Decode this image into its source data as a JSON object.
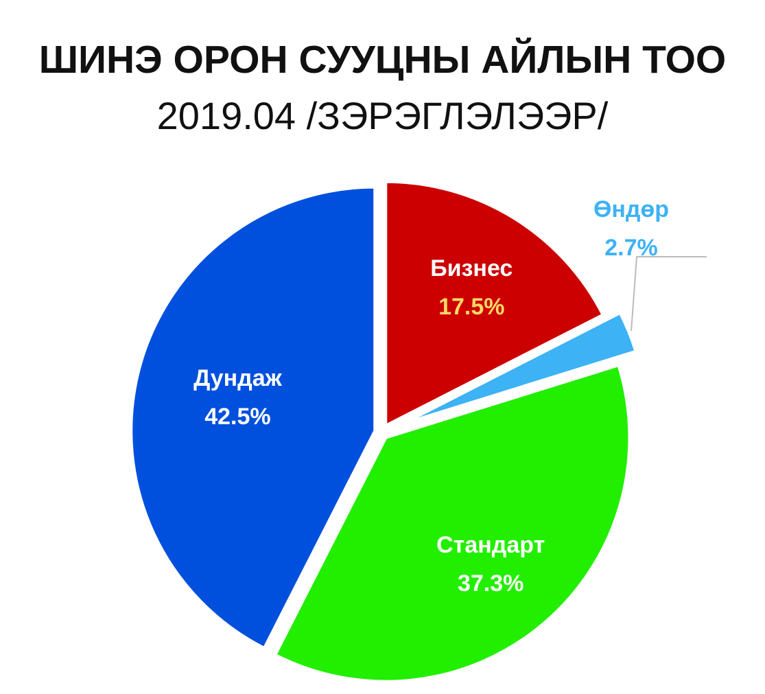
{
  "chart_data": {
    "type": "pie",
    "title": "ШИНЭ ОРОН СУУЦНЫ АЙЛЫН ТОО",
    "subtitle": "2019.04 /ЗЭРЭГЛЭЛЭЭР/",
    "slices": [
      {
        "label": "Бизнес",
        "value": 17.5,
        "value_label": "17.5%",
        "color": "#cc0000",
        "label_color": "#ffffff",
        "value_color": "#ffd966"
      },
      {
        "label": "Өндөр",
        "value": 2.7,
        "value_label": "2.7%",
        "color": "#3db2f5",
        "label_color": "#3db2f5",
        "value_color": "#3db2f5"
      },
      {
        "label": "Стандарт",
        "value": 37.3,
        "value_label": "37.3%",
        "color": "#22ee00",
        "label_color": "#ffffff",
        "value_color": "#ffffff"
      },
      {
        "label": "Дундаж",
        "value": 42.5,
        "value_label": "42.5%",
        "color": "#0050dd",
        "label_color": "#ffffff",
        "value_color": "#ffffff"
      }
    ],
    "start_angle_deg": 0,
    "direction": "clockwise",
    "exploded": true,
    "legend": "none"
  }
}
